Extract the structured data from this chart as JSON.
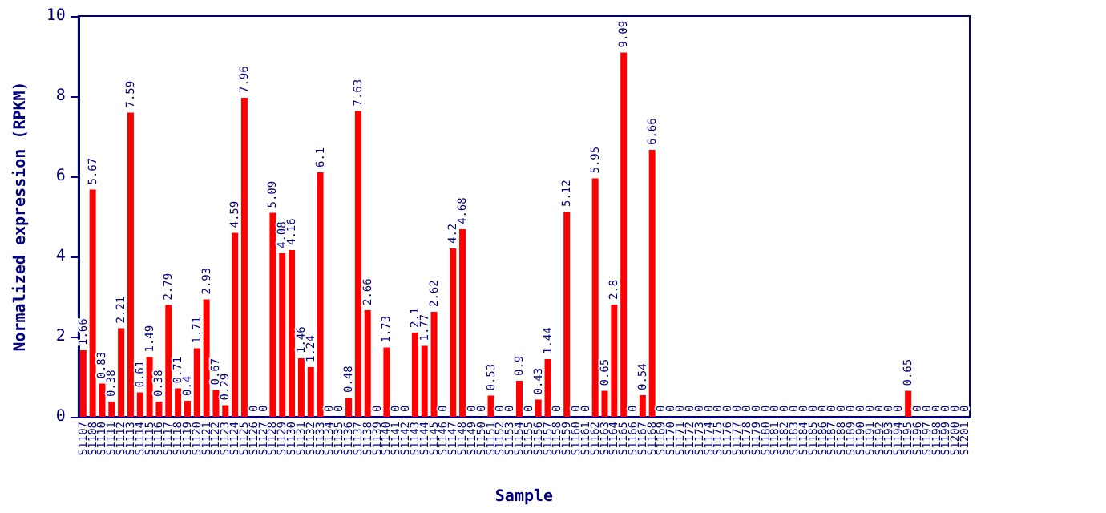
{
  "chart_data": {
    "type": "bar",
    "xlabel": "Sample",
    "ylabel": "Normalized expression (RPKM)",
    "categories": [
      "S1107",
      "S1108",
      "S1110",
      "S1111",
      "S1112",
      "S1113",
      "S1114",
      "S1115",
      "S1116",
      "S1117",
      "S1118",
      "S1119",
      "S1120",
      "S1121",
      "S1122",
      "S1123",
      "S1124",
      "S1125",
      "S1126",
      "S1127",
      "S1128",
      "S1129",
      "S1130",
      "S1131",
      "S1132",
      "S1133",
      "S1134",
      "S1135",
      "S1136",
      "S1137",
      "S1138",
      "S1139",
      "S1140",
      "S1141",
      "S1142",
      "S1143",
      "S1144",
      "S1145",
      "S1146",
      "S1147",
      "S1148",
      "S1149",
      "S1150",
      "S1151",
      "S1152",
      "S1153",
      "S1154",
      "S1155",
      "S1156",
      "S1157",
      "S1158",
      "S1159",
      "S1160",
      "S1161",
      "S1162",
      "S1163",
      "S1164",
      "S1165",
      "S1166",
      "S1167",
      "S1168",
      "S1169",
      "S1170",
      "S1171",
      "S1172",
      "S1173",
      "S1174",
      "S1175",
      "S1176",
      "S1177",
      "S1178",
      "S1179",
      "S1180",
      "S1181",
      "S1182",
      "S1183",
      "S1184",
      "S1185",
      "S1186",
      "S1187",
      "S1188",
      "S1189",
      "S1190",
      "S1191",
      "S1192",
      "S1193",
      "S1194",
      "S1195",
      "S1196",
      "S1197",
      "S1198",
      "S1199",
      "S1200",
      "S1201"
    ],
    "values": [
      1.66,
      5.67,
      0.83,
      0.38,
      2.21,
      7.59,
      0.61,
      1.49,
      0.38,
      2.79,
      0.71,
      0.4,
      1.71,
      2.93,
      0.67,
      0.29,
      4.59,
      7.96,
      0,
      0,
      5.09,
      4.08,
      4.16,
      1.46,
      1.24,
      6.1,
      0,
      0,
      0.48,
      7.63,
      2.66,
      0,
      1.73,
      0,
      0,
      2.1,
      1.77,
      2.62,
      0,
      4.2,
      4.68,
      0,
      0,
      0.53,
      0,
      0,
      0.9,
      0,
      0.43,
      1.44,
      0,
      5.12,
      0,
      0,
      5.95,
      0.65,
      2.8,
      9.09,
      0,
      0.54,
      6.66,
      0,
      0,
      0,
      0,
      0,
      0,
      0,
      0,
      0,
      0,
      0,
      0,
      0,
      0,
      0,
      0,
      0,
      0,
      0,
      0,
      0,
      0,
      0,
      0,
      0,
      0,
      0.65,
      0,
      0,
      0,
      0,
      0,
      0
    ],
    "color": "#ff0000",
    "ylim": [
      0,
      10
    ],
    "yticks": [
      0,
      2,
      4,
      6,
      8,
      10
    ],
    "grid": false,
    "data_labels": true
  }
}
